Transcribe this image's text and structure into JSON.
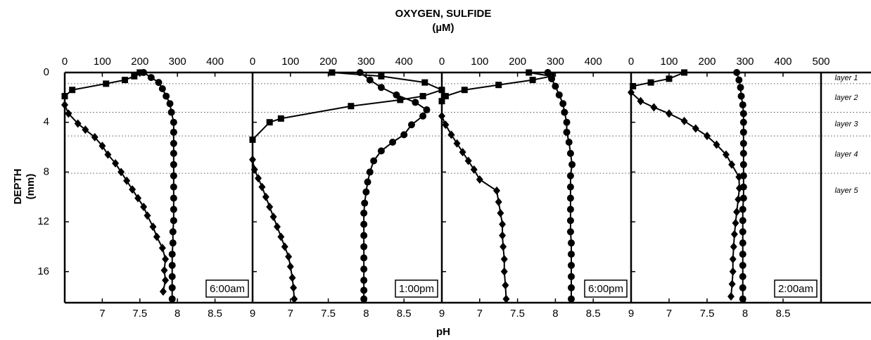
{
  "chart_data": {
    "type": "scatter",
    "title": "OXYGEN, SULFIDE",
    "title_unit": "(µM)",
    "y_label": "DEPTH",
    "y_unit": "(mm)",
    "x2_label": "pH",
    "ylim": [
      0,
      18.5
    ],
    "yticks": [
      0,
      4,
      8,
      12,
      16
    ],
    "layers": {
      "labels": [
        "layer 1",
        "layer 2",
        "layer 3",
        "layer 4",
        "layer 5"
      ],
      "boundaries": [
        0.9,
        3.2,
        5.1,
        8.1
      ]
    },
    "panels": [
      {
        "label": "6:00am",
        "xlim": [
          0,
          500
        ],
        "xticks": [
          0,
          100,
          200,
          300,
          400
        ],
        "x2lim": [
          6.5,
          9
        ],
        "x2ticks": [
          7,
          7.5,
          8,
          8.5,
          9
        ],
        "series": [
          {
            "marker": "square",
            "axis": "x",
            "depth": [
              0,
              0.3,
              0.6,
              0.9,
              1.4,
              1.9
            ],
            "values": [
              200,
              185,
              160,
              110,
              20,
              0
            ]
          },
          {
            "marker": "circle",
            "axis": "x2",
            "depth": [
              0,
              0.4,
              0.8,
              1.3,
              1.9,
              2.5,
              3.2,
              4,
              4.8,
              5.7,
              6.5,
              7.4,
              8.3,
              9.2,
              10.1,
              11,
              11.9,
              12.8,
              13.7,
              14.6,
              15.5,
              16.4,
              17.3,
              18.2
            ],
            "values": [
              7.55,
              7.65,
              7.75,
              7.8,
              7.85,
              7.9,
              7.92,
              7.95,
              7.95,
              7.95,
              7.95,
              7.95,
              7.95,
              7.95,
              7.95,
              7.95,
              7.95,
              7.94,
              7.94,
              7.93,
              7.93,
              7.93,
              7.93,
              7.93
            ]
          },
          {
            "marker": "diamond",
            "axis": "x",
            "depth": [
              2.6,
              3.3,
              4.1,
              4.6,
              5.2,
              5.9,
              6.6,
              7.3,
              8,
              8.7,
              9.4,
              10.1,
              10.8,
              11.5,
              12.4,
              13.2,
              14.1,
              15,
              15.9,
              16.7,
              17.6
            ],
            "values": [
              0,
              10,
              35,
              55,
              80,
              100,
              115,
              135,
              150,
              165,
              180,
              195,
              210,
              220,
              235,
              245,
              260,
              268,
              265,
              268,
              262
            ]
          }
        ]
      },
      {
        "label": "1:00pm",
        "xlim": [
          0,
          500
        ],
        "xticks": [
          0,
          100,
          200,
          300,
          400
        ],
        "x2lim": [
          6.5,
          9
        ],
        "x2ticks": [
          7,
          7.5,
          8,
          8.5,
          9
        ],
        "series": [
          {
            "marker": "square",
            "axis": "x",
            "depth": [
              0,
              0.3,
              0.8,
              1.4,
              1.9,
              2.2,
              2.7,
              3.7,
              4,
              5.4
            ],
            "values": [
              210,
              340,
              455,
              500,
              450,
              390,
              260,
              75,
              45,
              0
            ]
          },
          {
            "marker": "circle",
            "axis": "x2",
            "depth": [
              0,
              0.6,
              1.2,
              1.8,
              2.4,
              3,
              3.5,
              4.2,
              5,
              5.6,
              6.3,
              7.1,
              8,
              8.8,
              9.6,
              10.5,
              11.3,
              12.2,
              13.1,
              14,
              14.9,
              15.8,
              16.7,
              17.5,
              18.2
            ],
            "values": [
              7.92,
              8.05,
              8.2,
              8.4,
              8.65,
              8.8,
              8.75,
              8.6,
              8.5,
              8.35,
              8.2,
              8.1,
              8.05,
              8.02,
              8.0,
              7.98,
              7.97,
              7.97,
              7.97,
              7.97,
              7.97,
              7.97,
              7.97,
              7.97,
              7.97
            ]
          },
          {
            "marker": "diamond",
            "axis": "x",
            "depth": [
              7,
              7.8,
              8.5,
              9.2,
              10,
              10.8,
              11.6,
              12.4,
              13.2,
              14,
              14.8,
              15.6,
              16.5,
              17.3,
              18.2
            ],
            "values": [
              0,
              5,
              15,
              25,
              35,
              45,
              55,
              65,
              75,
              85,
              95,
              100,
              105,
              108,
              110
            ]
          }
        ]
      },
      {
        "label": "6:00pm",
        "xlim": [
          0,
          500
        ],
        "xticks": [
          0,
          100,
          200,
          300,
          400
        ],
        "x2lim": [
          6.5,
          9
        ],
        "x2ticks": [
          7,
          7.5,
          8,
          8.5,
          9
        ],
        "series": [
          {
            "marker": "square",
            "axis": "x",
            "depth": [
              0,
              0.3,
              0.6,
              1,
              1.4,
              1.9,
              2.3
            ],
            "values": [
              230,
              290,
              240,
              150,
              60,
              10,
              0
            ]
          },
          {
            "marker": "circle",
            "axis": "x2",
            "depth": [
              0,
              0.5,
              1.1,
              1.8,
              2.5,
              3.2,
              4,
              4.8,
              5.6,
              6.5,
              7.4,
              8.3,
              9.2,
              10.1,
              11,
              11.9,
              12.8,
              13.7,
              14.6,
              15.5,
              16.4,
              17.3,
              18.2
            ],
            "values": [
              7.9,
              7.95,
              8.0,
              8.05,
              8.1,
              8.12,
              8.15,
              8.15,
              8.18,
              8.2,
              8.22,
              8.2,
              8.2,
              8.2,
              8.2,
              8.2,
              8.2,
              8.21,
              8.21,
              8.21,
              8.21,
              8.21,
              8.21
            ]
          },
          {
            "marker": "diamond",
            "axis": "x",
            "depth": [
              3.5,
              4.2,
              5,
              5.7,
              6.4,
              7.1,
              7.8,
              8.6,
              9.5,
              10.4,
              11.3,
              12.2,
              13.1,
              14,
              15,
              16,
              17.1,
              18.2
            ],
            "values": [
              0,
              10,
              25,
              40,
              55,
              70,
              85,
              100,
              145,
              150,
              155,
              160,
              160,
              162,
              165,
              165,
              168,
              170
            ]
          }
        ]
      },
      {
        "label": "2:00am",
        "xlim": [
          0,
          500
        ],
        "xticks": [
          0,
          100,
          200,
          300,
          400,
          500
        ],
        "x2lim": [
          6.5,
          9
        ],
        "x2ticks": [
          7,
          7.5,
          8,
          8.5
        ],
        "series": [
          {
            "marker": "square",
            "axis": "x",
            "depth": [
              0,
              0.5,
              0.8,
              1.1
            ],
            "values": [
              140,
              100,
              52,
              5
            ]
          },
          {
            "marker": "circle",
            "axis": "x2",
            "depth": [
              0,
              0.6,
              1.2,
              1.9,
              2.6,
              3.3,
              4,
              4.8,
              5.7,
              6.5,
              7.4,
              8.3,
              9.2,
              10.1,
              11,
              11.9,
              12.8,
              13.7,
              14.6,
              15.5,
              16.4,
              17.3,
              18.2
            ],
            "values": [
              7.89,
              7.92,
              7.94,
              7.95,
              7.97,
              7.98,
              7.98,
              7.98,
              7.98,
              7.98,
              7.98,
              7.98,
              7.98,
              7.98,
              7.97,
              7.97,
              7.97,
              7.97,
              7.97,
              7.97,
              7.97,
              7.97,
              7.97
            ]
          },
          {
            "marker": "diamond",
            "axis": "x",
            "depth": [
              1.6,
              2.3,
              2.8,
              3.3,
              3.9,
              4.5,
              5.1,
              5.8,
              6.6,
              7.4,
              8.4,
              9.3,
              10.2,
              11.2,
              12.1,
              13,
              14,
              15,
              16,
              17,
              18
            ],
            "values": [
              0,
              25,
              60,
              100,
              140,
              170,
              200,
              225,
              250,
              265,
              284,
              285,
              282,
              278,
              275,
              272,
              270,
              268,
              268,
              266,
              263
            ]
          }
        ]
      }
    ]
  }
}
